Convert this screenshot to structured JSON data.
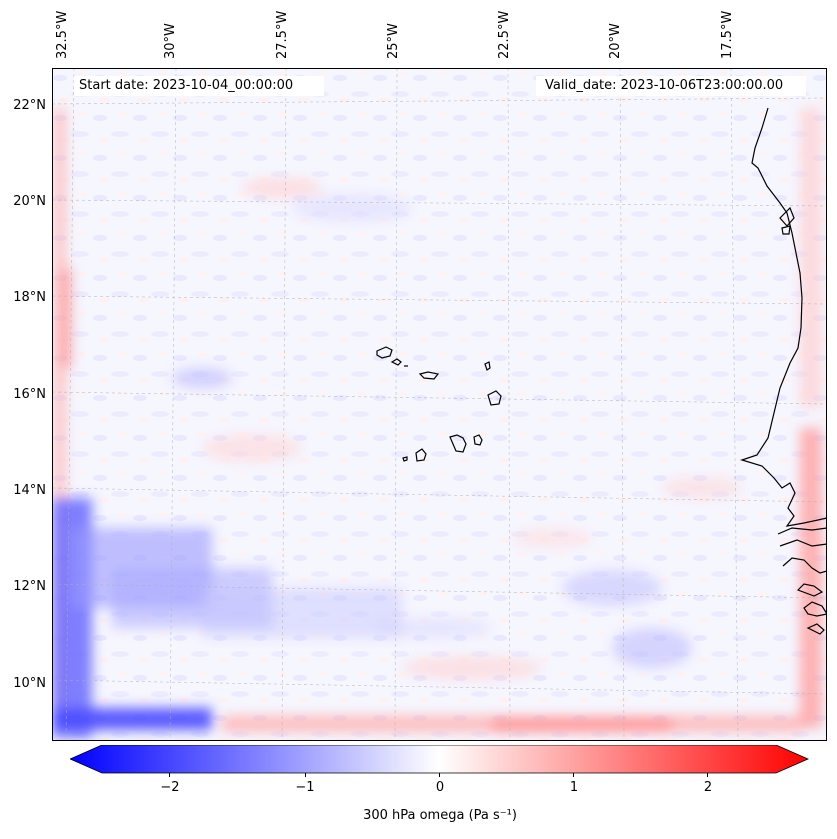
{
  "map": {
    "start_date": "Start date: 2023-10-04_00:00:00",
    "valid_date": "Valid_date: 2023-10-06T23:00:00.00",
    "lon_labels": [
      "32.5°W",
      "30°W",
      "27.5°W",
      "25°W",
      "22.5°W",
      "20°W",
      "17.5°W"
    ],
    "lat_labels": [
      "22°N",
      "20°N",
      "18°N",
      "16°N",
      "14°N",
      "12°N",
      "10°N"
    ],
    "field": "300 hPa omega",
    "region": "Eastern tropical Atlantic, Cape Verde islands, West African coast"
  },
  "colorbar": {
    "label": "300 hPa omega (Pa s⁻¹)",
    "ticks": [
      "−2",
      "−1",
      "0",
      "1",
      "2"
    ],
    "range": [
      -2.7,
      2.7
    ],
    "colors": {
      "negative": "#0000ff",
      "zero": "#ffffff",
      "positive": "#ff0000"
    }
  }
}
